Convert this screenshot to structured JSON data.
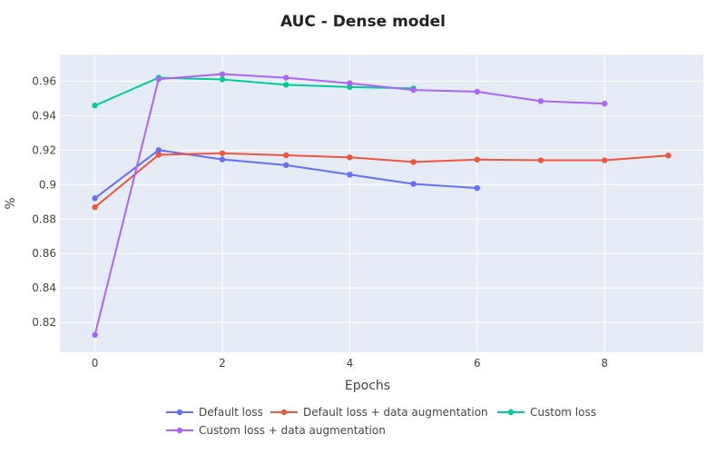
{
  "chart_data": {
    "type": "line",
    "title": "AUC - Dense model",
    "xlabel": "Epochs",
    "ylabel": "%",
    "xlim": [
      -0.55,
      9.55
    ],
    "ylim": [
      0.8027,
      0.9755
    ],
    "x_ticks": [
      0,
      2,
      4,
      6,
      8
    ],
    "x_tick_labels": [
      "0",
      "2",
      "4",
      "6",
      "8"
    ],
    "y_ticks": [
      0.82,
      0.84,
      0.86,
      0.88,
      0.9,
      0.92,
      0.94,
      0.96
    ],
    "y_tick_labels": [
      "0.82",
      "0.84",
      "0.86",
      "0.88",
      "0.9",
      "0.92",
      "0.94",
      "0.96"
    ],
    "grid": true,
    "legend_position": "bottom-center",
    "colors": {
      "plot_background": "#e5ecf6",
      "grid": "#ffffff",
      "title": "#222222",
      "text": "#444444"
    },
    "series": [
      {
        "name": "Default loss",
        "color": "#636efa",
        "x": [
          0,
          1,
          2,
          3,
          4,
          5,
          6
        ],
        "y": [
          0.8921,
          0.92,
          0.9146,
          0.9113,
          0.9058,
          0.9004,
          0.898
        ]
      },
      {
        "name": "Default loss + data augmentation",
        "color": "#ef553b",
        "x": [
          0,
          1,
          2,
          3,
          4,
          5,
          6,
          7,
          8,
          9
        ],
        "y": [
          0.8869,
          0.9173,
          0.9182,
          0.917,
          0.9158,
          0.9131,
          0.9145,
          0.9141,
          0.9141,
          0.9169
        ]
      },
      {
        "name": "Custom loss",
        "color": "#00cc96",
        "x": [
          0,
          1,
          2,
          3,
          4,
          5
        ],
        "y": [
          0.9459,
          0.962,
          0.961,
          0.9579,
          0.9566,
          0.9558
        ]
      },
      {
        "name": "Custom loss + data augmentation",
        "color": "#ab63fa",
        "x": [
          0,
          1,
          2,
          3,
          4,
          5,
          6,
          7,
          8
        ],
        "y": [
          0.8128,
          0.9612,
          0.9641,
          0.962,
          0.9588,
          0.9549,
          0.9539,
          0.9484,
          0.947
        ]
      }
    ]
  }
}
